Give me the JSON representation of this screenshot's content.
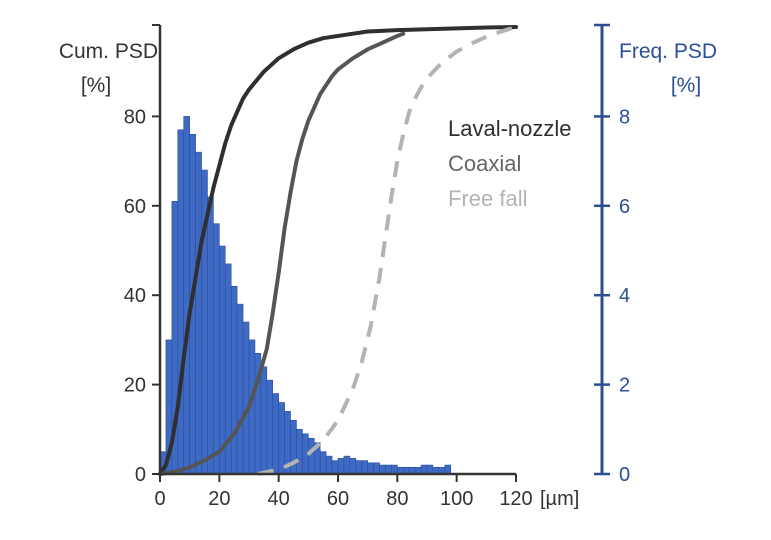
{
  "chart_data": {
    "type": "bar",
    "colors": {
      "bars": "#3f6ac4",
      "bar_edge": "#2a4f9e",
      "right_axis": "#2b4f95",
      "left_axis": "#333333",
      "laval": "#2f2f2f",
      "coaxial": "#555555",
      "freefall": "#b3b3b3"
    },
    "left_axis": {
      "title_line1": "Cum. PSD",
      "title_line2": "[%]",
      "ylim": [
        0,
        100
      ],
      "ticks": [
        0,
        20,
        40,
        60,
        80
      ]
    },
    "right_axis": {
      "title_line1": "Freq. PSD",
      "title_line2": "[%]",
      "ylim": [
        0,
        10
      ],
      "ticks": [
        0,
        2,
        4,
        6,
        8
      ]
    },
    "x_axis": {
      "xlim": [
        0,
        120
      ],
      "ticks": [
        0,
        20,
        40,
        60,
        80,
        100,
        120
      ],
      "unit": "[µm]"
    },
    "histogram": {
      "name": "Freq. PSD",
      "bin_width": 2,
      "x_start": 0,
      "values": [
        0.5,
        3.0,
        6.1,
        7.7,
        8.0,
        7.6,
        7.2,
        6.8,
        6.2,
        5.6,
        5.1,
        4.7,
        4.2,
        3.8,
        3.4,
        3.0,
        2.7,
        2.4,
        2.1,
        1.8,
        1.6,
        1.4,
        1.2,
        1.0,
        0.9,
        0.8,
        0.7,
        0.5,
        0.4,
        0.3,
        0.35,
        0.4,
        0.35,
        0.3,
        0.3,
        0.25,
        0.25,
        0.2,
        0.2,
        0.2,
        0.15,
        0.15,
        0.15,
        0.15,
        0.2,
        0.2,
        0.15,
        0.15,
        0.2
      ]
    },
    "series": [
      {
        "name": "Laval-nozzle",
        "style": "solid",
        "x": [
          0,
          2,
          4,
          6,
          8,
          10,
          12,
          14,
          16,
          18,
          20,
          22,
          24,
          26,
          28,
          30,
          35,
          40,
          45,
          50,
          55,
          60,
          70,
          80,
          90,
          100,
          110,
          120
        ],
        "y": [
          0,
          2,
          7,
          15,
          26,
          36,
          44,
          52,
          58,
          64,
          69,
          74,
          78,
          81,
          84,
          86,
          90,
          93,
          95,
          96.5,
          97.5,
          98,
          99,
          99.3,
          99.5,
          99.7,
          99.9,
          100
        ]
      },
      {
        "name": "Coaxial",
        "style": "solid",
        "x": [
          0,
          5,
          10,
          15,
          20,
          25,
          30,
          33,
          36,
          38,
          40,
          42,
          44,
          46,
          48,
          50,
          52,
          54,
          56,
          58,
          60,
          65,
          70,
          75,
          80,
          82
        ],
        "y": [
          0,
          0.5,
          1.5,
          3,
          5,
          9,
          15,
          21,
          28,
          36,
          45,
          55,
          63,
          70,
          75,
          79,
          82,
          85,
          87,
          89,
          90.5,
          93,
          95,
          96.5,
          98,
          98.5
        ]
      },
      {
        "name": "Free fall",
        "style": "dashed",
        "x": [
          33,
          40,
          45,
          50,
          55,
          60,
          65,
          68,
          71,
          74,
          76,
          78,
          80,
          82,
          84,
          86,
          88,
          90,
          95,
          100,
          105,
          110,
          115,
          120
        ],
        "y": [
          0,
          1,
          2.5,
          4.5,
          7.5,
          12,
          19,
          25,
          33,
          44,
          53,
          62,
          70,
          76,
          81,
          84,
          86.5,
          88.5,
          92,
          94.5,
          96.3,
          97.8,
          99,
          100
        ]
      }
    ],
    "legend": {
      "placement": "top-right",
      "items": [
        {
          "label": "Laval-nozzle",
          "color": "#2f2f2f"
        },
        {
          "label": "Coaxial",
          "color": "#666666"
        },
        {
          "label": "Free fall",
          "color": "#b3b3b3"
        }
      ]
    }
  }
}
